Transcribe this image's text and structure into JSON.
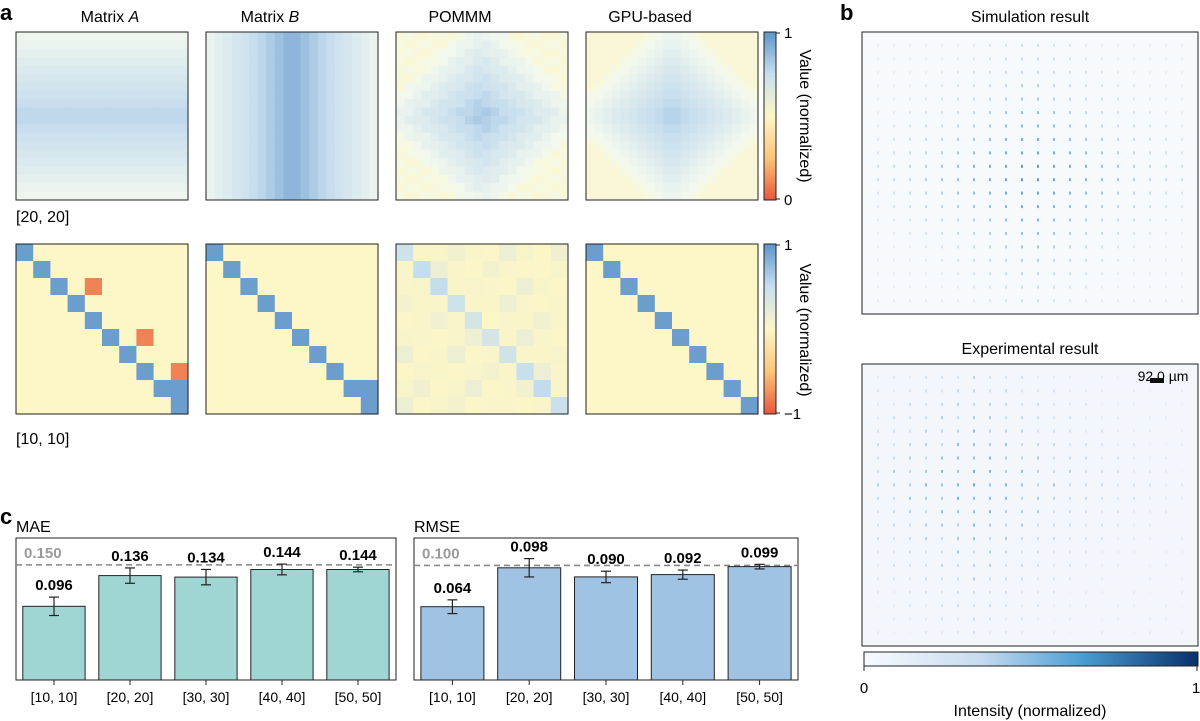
{
  "panel_labels": {
    "a": "a",
    "b": "b",
    "c": "c"
  },
  "panel_a": {
    "titles": {
      "A_prefix": "Matrix ",
      "A_var": "A",
      "B_prefix": "Matrix ",
      "B_var": "B",
      "pommm": "POMMM",
      "gpu": "GPU-based"
    },
    "row1": {
      "size_label": "[20, 20]",
      "cbar_label": "Value (normalized)",
      "cbar_max": "1",
      "cbar_min": "0"
    },
    "row2": {
      "size_label": "[10, 10]",
      "cbar_label": "Value (normalized)",
      "cbar_max": "1",
      "cbar_min": "−1"
    }
  },
  "panel_b": {
    "sim_title": "Simulation result",
    "exp_title": "Experimental result",
    "scale_bar_label": "92.0 µm",
    "cbar_label": "Intensity (normalized)",
    "cbar_min": "0",
    "cbar_max": "1",
    "colors": {
      "low": "#f7fbff",
      "mid": "#4c9ed3",
      "high": "#08306b"
    }
  },
  "chart_data": [
    {
      "type": "bar",
      "title": "MAE",
      "categories": [
        "[10, 10]",
        "[20, 20]",
        "[30, 30]",
        "[40, 40]",
        "[50, 50]"
      ],
      "values": [
        0.096,
        0.136,
        0.134,
        0.144,
        0.144
      ],
      "errors": [
        0.012,
        0.01,
        0.01,
        0.007,
        0.003
      ],
      "value_labels": [
        "0.096",
        "0.136",
        "0.134",
        "0.144",
        "0.144"
      ],
      "reference_line": 0.15,
      "reference_label": "0.150",
      "ylim": [
        0,
        0.185
      ],
      "bar_color": "#9fd6d3"
    },
    {
      "type": "bar",
      "title": "RMSE",
      "categories": [
        "[10, 10]",
        "[20, 20]",
        "[30, 30]",
        "[40, 40]",
        "[50, 50]"
      ],
      "values": [
        0.064,
        0.098,
        0.09,
        0.092,
        0.099
      ],
      "errors": [
        0.006,
        0.008,
        0.005,
        0.004,
        0.002
      ],
      "value_labels": [
        "0.064",
        "0.098",
        "0.090",
        "0.092",
        "0.099"
      ],
      "reference_line": 0.1,
      "reference_label": "0.100",
      "ylim": [
        0,
        0.124
      ],
      "bar_color": "#a1c3e3"
    }
  ]
}
